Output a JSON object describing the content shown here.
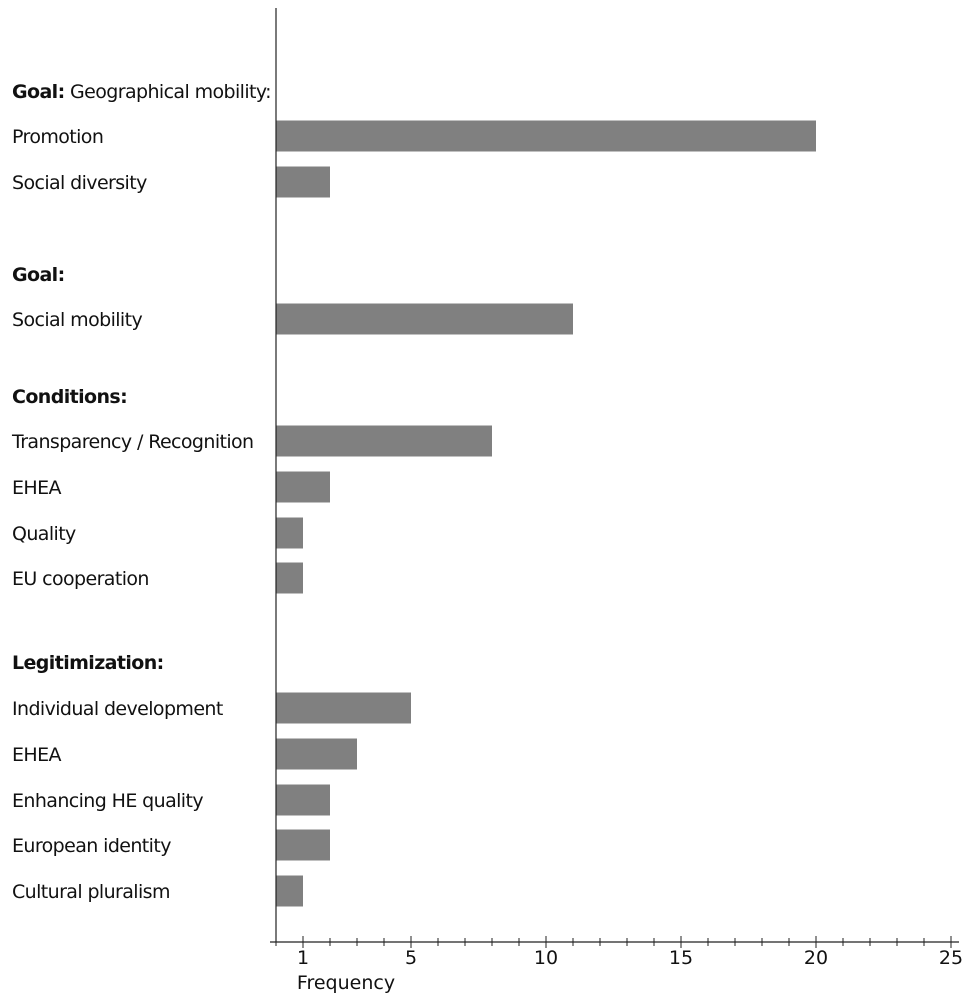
{
  "chart_data": {
    "type": "bar",
    "orientation": "horizontal",
    "xlabel": "Frequency",
    "xlim": [
      0,
      25
    ],
    "x_ticks": [
      1,
      5,
      10,
      15,
      20,
      25
    ],
    "grid": false,
    "rows": [
      {
        "kind": "heading",
        "bold": "Goal:",
        "rest": " Geographical mobility:"
      },
      {
        "kind": "bar",
        "label": "Promotion",
        "value": 20
      },
      {
        "kind": "bar",
        "label": "Social diversity",
        "value": 2
      },
      {
        "kind": "spacer"
      },
      {
        "kind": "heading",
        "bold": "Goal:",
        "rest": ""
      },
      {
        "kind": "bar",
        "label": "Social mobility",
        "value": 11
      },
      {
        "kind": "heading",
        "bold": "Conditions:",
        "rest": ""
      },
      {
        "kind": "bar",
        "label": "Transparency / Recognition",
        "value": 8
      },
      {
        "kind": "bar",
        "label": "EHEA",
        "value": 2
      },
      {
        "kind": "bar",
        "label": "Quality",
        "value": 1
      },
      {
        "kind": "bar",
        "label": "EU cooperation",
        "value": 1
      },
      {
        "kind": "heading",
        "bold": "Legitimization:",
        "rest": ""
      },
      {
        "kind": "bar",
        "label": "Individual development",
        "value": 5
      },
      {
        "kind": "bar",
        "label": "EHEA",
        "value": 3
      },
      {
        "kind": "bar",
        "label": "Enhancing HE quality",
        "value": 2
      },
      {
        "kind": "bar",
        "label": "European identity",
        "value": 2
      },
      {
        "kind": "bar",
        "label": "Cultural pluralism",
        "value": 1
      }
    ],
    "bar_color": "#808080"
  }
}
